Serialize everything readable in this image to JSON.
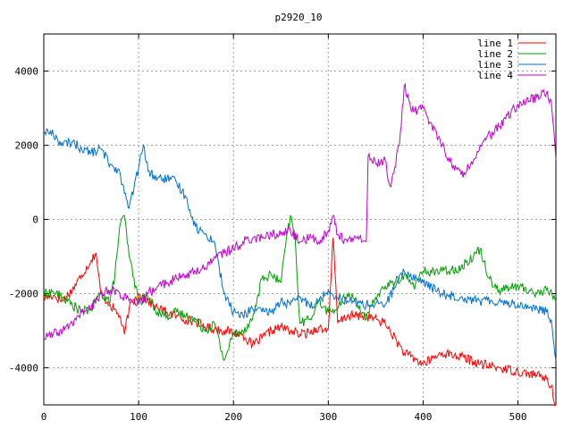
{
  "chart_data": {
    "type": "line",
    "title": "p2920_10",
    "xlabel": "",
    "ylabel": "",
    "xlim": [
      0,
      540
    ],
    "ylim": [
      -5000,
      5000
    ],
    "xticks": [
      0,
      100,
      200,
      300,
      400,
      500
    ],
    "yticks": [
      -4000,
      -2000,
      0,
      2000,
      4000
    ],
    "xtick_labels": [
      "0",
      "100",
      "200",
      "300",
      "400",
      "500"
    ],
    "ytick_labels": [
      "-4000",
      "-2000",
      "0",
      "2000",
      "4000"
    ],
    "grid": true,
    "legend_position": "top-right",
    "series": [
      {
        "name": "line 1",
        "color": "#ff0000",
        "x": [
          0,
          10,
          20,
          30,
          40,
          50,
          55,
          60,
          70,
          80,
          85,
          90,
          100,
          110,
          120,
          130,
          140,
          150,
          160,
          170,
          180,
          190,
          200,
          210,
          220,
          230,
          240,
          250,
          260,
          270,
          280,
          290,
          295,
          300,
          305,
          310,
          320,
          340,
          360,
          380,
          400,
          420,
          440,
          460,
          480,
          500,
          520,
          530,
          535,
          540
        ],
        "values": [
          -2100,
          -2050,
          -2200,
          -1900,
          -1500,
          -1100,
          -900,
          -2000,
          -2300,
          -2600,
          -3100,
          -2400,
          -2000,
          -2200,
          -2400,
          -2500,
          -2600,
          -2700,
          -2750,
          -2900,
          -2950,
          -3000,
          -3050,
          -3100,
          -3400,
          -3200,
          -3000,
          -2900,
          -3000,
          -3100,
          -3050,
          -2900,
          -3000,
          -2950,
          -500,
          -2800,
          -2600,
          -2600,
          -2800,
          -3600,
          -3900,
          -3600,
          -3700,
          -3900,
          -4000,
          -4100,
          -4200,
          -4300,
          -4500,
          -5000
        ]
      },
      {
        "name": "line 2",
        "color": "#00a000",
        "x": [
          0,
          10,
          20,
          30,
          40,
          50,
          60,
          70,
          75,
          80,
          85,
          90,
          100,
          110,
          120,
          130,
          140,
          150,
          160,
          170,
          180,
          190,
          200,
          210,
          220,
          230,
          240,
          250,
          255,
          260,
          265,
          270,
          280,
          290,
          300,
          310,
          320,
          330,
          340,
          350,
          360,
          370,
          380,
          390,
          400,
          420,
          440,
          460,
          470,
          480,
          500,
          520,
          530,
          540
        ],
        "values": [
          -2000,
          -1950,
          -2100,
          -2300,
          -2500,
          -2400,
          -2000,
          -2200,
          -1500,
          -200,
          100,
          -1000,
          -2200,
          -2100,
          -2500,
          -2600,
          -2500,
          -2600,
          -2700,
          -3000,
          -2800,
          -3800,
          -3100,
          -3000,
          -2700,
          -1600,
          -1500,
          -1700,
          -700,
          100,
          -500,
          -2800,
          -2700,
          -2200,
          -2500,
          -2400,
          -2000,
          -2200,
          -2700,
          -2100,
          -1800,
          -1700,
          -1500,
          -1800,
          -1400,
          -1400,
          -1300,
          -800,
          -1600,
          -1900,
          -1800,
          -2000,
          -1900,
          -2100
        ]
      },
      {
        "name": "line 3",
        "color": "#0070d0",
        "x": [
          0,
          10,
          20,
          30,
          40,
          50,
          60,
          70,
          80,
          85,
          90,
          100,
          105,
          110,
          120,
          130,
          140,
          150,
          160,
          170,
          180,
          190,
          200,
          210,
          220,
          230,
          240,
          250,
          260,
          270,
          280,
          290,
          300,
          310,
          320,
          340,
          360,
          380,
          400,
          420,
          440,
          460,
          480,
          500,
          520,
          530,
          535,
          540
        ],
        "values": [
          2400,
          2300,
          2000,
          2100,
          1900,
          1800,
          1900,
          1500,
          1300,
          700,
          300,
          1400,
          2000,
          1300,
          1100,
          1100,
          1000,
          600,
          -200,
          -400,
          -600,
          -2000,
          -2500,
          -2600,
          -2400,
          -2500,
          -2500,
          -2200,
          -2300,
          -2100,
          -2300,
          -2200,
          -1900,
          -2100,
          -2200,
          -2300,
          -2300,
          -1400,
          -1700,
          -2000,
          -2100,
          -2200,
          -2200,
          -2300,
          -2400,
          -2500,
          -2700,
          -3800
        ]
      },
      {
        "name": "line 4",
        "color": "#c000d0",
        "x": [
          0,
          10,
          20,
          30,
          40,
          50,
          60,
          70,
          80,
          90,
          100,
          110,
          120,
          130,
          140,
          150,
          160,
          170,
          180,
          190,
          200,
          210,
          220,
          230,
          240,
          250,
          260,
          270,
          280,
          290,
          300,
          305,
          310,
          320,
          330,
          340,
          342,
          350,
          360,
          365,
          370,
          375,
          380,
          385,
          390,
          400,
          420,
          430,
          440,
          450,
          460,
          480,
          500,
          520,
          530,
          535,
          540
        ],
        "values": [
          -3200,
          -3100,
          -3000,
          -2800,
          -2500,
          -2400,
          -2000,
          -1900,
          -2000,
          -2200,
          -2300,
          -2000,
          -1800,
          -1700,
          -1600,
          -1500,
          -1400,
          -1300,
          -1000,
          -900,
          -800,
          -600,
          -500,
          -500,
          -400,
          -400,
          -300,
          -600,
          -500,
          -600,
          -300,
          100,
          -400,
          -600,
          -500,
          -600,
          1700,
          1500,
          1600,
          900,
          1400,
          2000,
          3600,
          3200,
          2900,
          3000,
          2000,
          1500,
          1200,
          1500,
          2000,
          2500,
          3100,
          3300,
          3400,
          3200,
          1600
        ]
      }
    ]
  }
}
